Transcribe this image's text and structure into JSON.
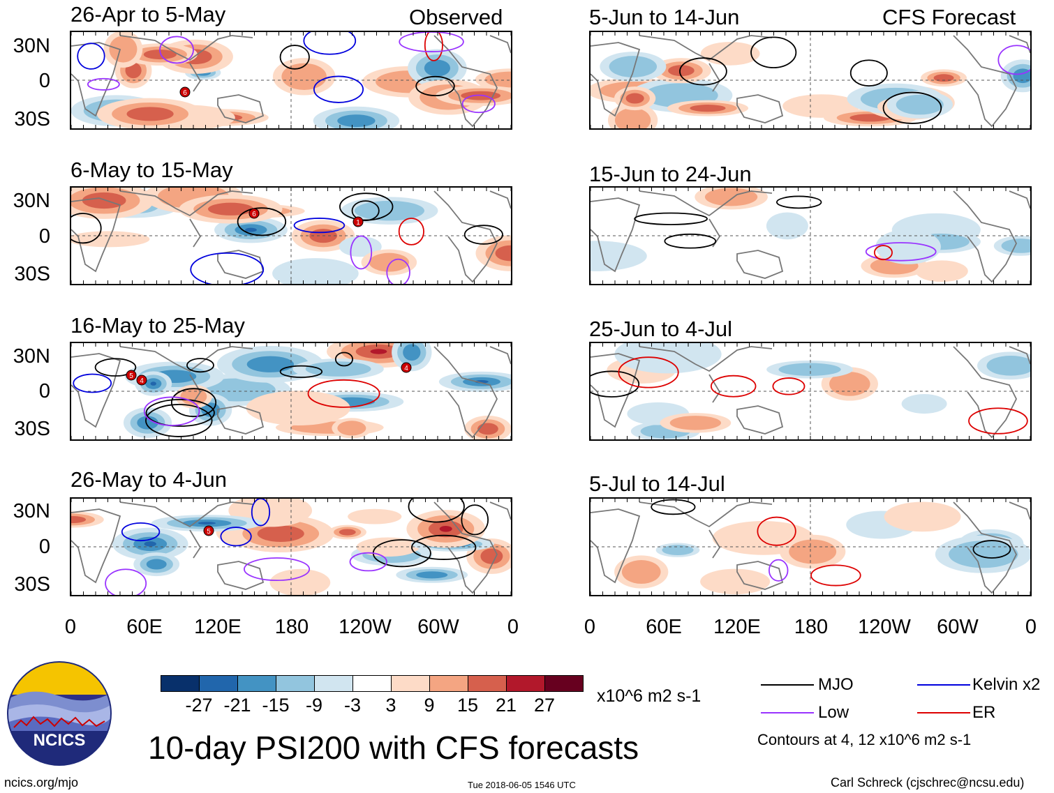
{
  "corner_labels": {
    "left": "Observed",
    "right": "CFS Forecast"
  },
  "observed_panels": [
    {
      "title": "26-Apr to 5-May",
      "storms": [
        "6"
      ]
    },
    {
      "title": "6-May to 15-May",
      "storms": [
        "6",
        "1"
      ]
    },
    {
      "title": "16-May to 25-May",
      "storms": [
        "5",
        "4",
        "4"
      ]
    },
    {
      "title": "26-May to 4-Jun",
      "storms": [
        "5"
      ]
    }
  ],
  "forecast_panels": [
    {
      "title": "5-Jun to 14-Jun"
    },
    {
      "title": "15-Jun to 24-Jun"
    },
    {
      "title": "25-Jun to 4-Jul"
    },
    {
      "title": "5-Jul to 14-Jul"
    }
  ],
  "lat_labels": [
    "30N",
    "0",
    "30S"
  ],
  "lon_labels": [
    "0",
    "60E",
    "120E",
    "180",
    "120W",
    "60W",
    "0"
  ],
  "colorbar": {
    "colors": [
      "#08306b",
      "#2166ac",
      "#4393c3",
      "#92c5de",
      "#d1e5f0",
      "#ffffff",
      "#fddbc7",
      "#f4a582",
      "#d6604d",
      "#b2182b",
      "#67001f"
    ],
    "ticks": [
      "-27",
      "-21",
      "-15",
      "-9",
      "-3",
      "3",
      "9",
      "15",
      "21",
      "27"
    ],
    "units": "x10^6 m2 s-1"
  },
  "legend": {
    "items": [
      {
        "label": "MJO",
        "color": "#000000"
      },
      {
        "label": "Kelvin x2",
        "color": "#0000dd"
      },
      {
        "label": "Low",
        "color": "#9933ff"
      },
      {
        "label": "ER",
        "color": "#dd0000"
      }
    ],
    "note": "Contours at 4, 12 x10^6 m2 s-1"
  },
  "logo": {
    "text": "NCICS"
  },
  "main_title": "10-day PSI200 with CFS forecasts",
  "footer": {
    "left": "ncics.org/mjo",
    "center": "Tue 2018-06-05 1546 UTC",
    "right": "Carl Schreck (cjschrec@ncsu.edu)"
  }
}
